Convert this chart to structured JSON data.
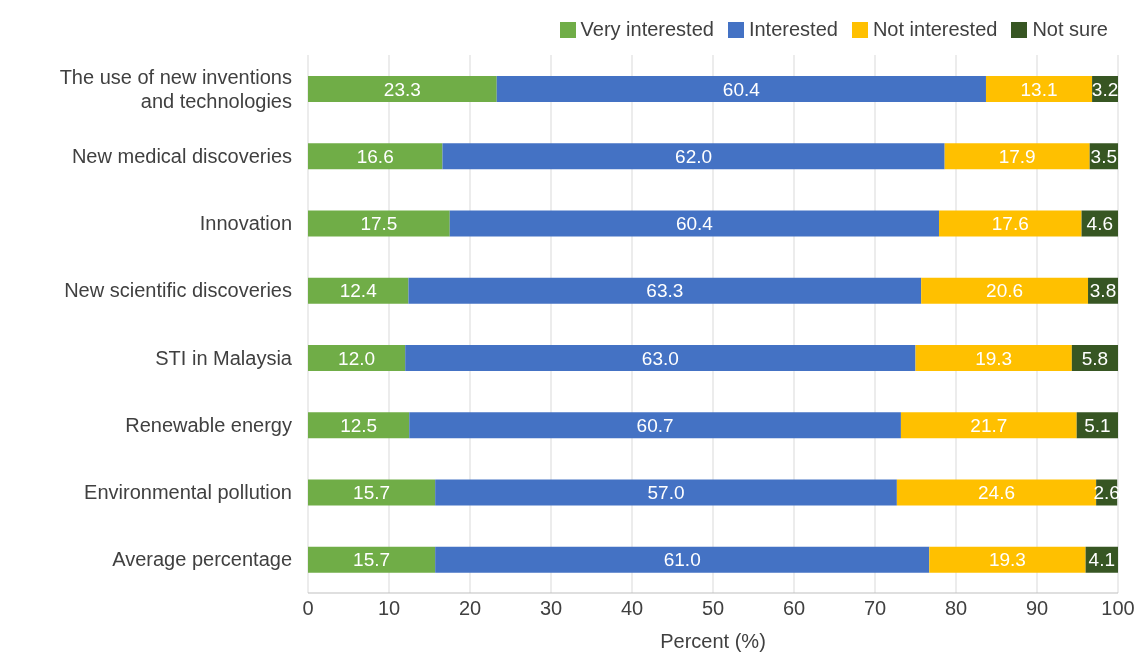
{
  "chart_data": {
    "type": "bar",
    "orientation": "horizontal",
    "stacked": true,
    "xlabel": "Percent (%)",
    "categories": [
      "The use of new inventions and technologies",
      "New medical discoveries",
      "Innovation",
      "New scientific discoveries",
      "STI in Malaysia",
      "Renewable energy",
      "Environmental pollution",
      "Average percentage"
    ],
    "series": [
      {
        "name": "Very interested",
        "color": "#70ad47",
        "values": [
          23.3,
          16.6,
          17.5,
          12.4,
          12.0,
          12.5,
          15.7,
          15.7
        ],
        "value_labels": [
          "23.3",
          "16.6",
          "17.5",
          "12.4",
          "12.0",
          "12.5",
          "15.7",
          "15.7"
        ]
      },
      {
        "name": "Interested",
        "color": "#4472c4",
        "values": [
          60.4,
          62.0,
          60.4,
          63.3,
          63.0,
          60.7,
          57.0,
          61.0
        ],
        "value_labels": [
          "60.4",
          "62.0",
          "60.4",
          "63.3",
          "63.0",
          "60.7",
          "57.0",
          "61.0"
        ]
      },
      {
        "name": "Not interested",
        "color": "#ffc000",
        "values": [
          13.1,
          17.9,
          17.6,
          20.6,
          19.3,
          21.7,
          24.6,
          19.3
        ],
        "value_labels": [
          "13.1",
          "17.9",
          "17.6",
          "20.6",
          "19.3",
          "21.7",
          "24.6",
          "19.3"
        ]
      },
      {
        "name": "Not sure",
        "color": "#375623",
        "values": [
          3.2,
          3.5,
          4.6,
          3.8,
          5.8,
          5.1,
          2.6,
          4.1
        ],
        "value_labels": [
          "3.2",
          "3.5",
          "4.6",
          "3.8",
          "5.8",
          "5.1",
          "2.6",
          "4.1"
        ]
      }
    ],
    "xlim": [
      0,
      100
    ],
    "xticks": [
      0,
      10,
      20,
      30,
      40,
      50,
      60,
      70,
      80,
      90,
      100
    ],
    "grid": "x",
    "legend": "top right"
  }
}
